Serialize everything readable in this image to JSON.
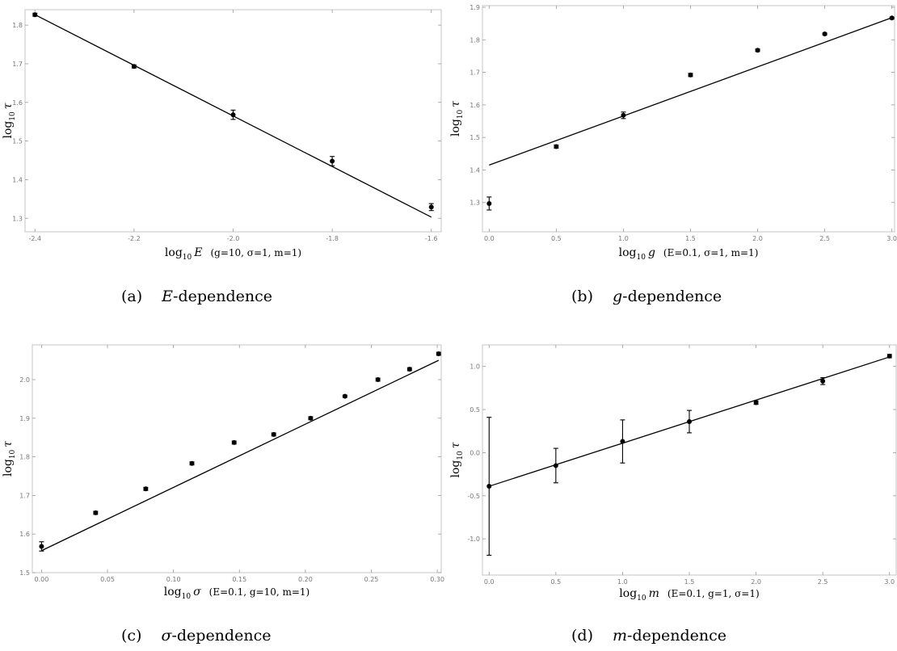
{
  "chart_data": [
    {
      "panel": "a",
      "type": "scatter",
      "xlabel": {
        "pre": "log",
        "sub": "10",
        "var": "E",
        "params": "(g=10, σ=1, m=1)"
      },
      "ylabel": {
        "pre": "log",
        "sub": "10",
        "var": "τ"
      },
      "xlim": [
        -2.42,
        -1.58
      ],
      "ylim": [
        1.265,
        1.84
      ],
      "xticks": [
        -2.4,
        -2.2,
        -2.0,
        -1.8,
        -1.6
      ],
      "xtick_labels": [
        "-2.4",
        "-2.2",
        "-2.0",
        "-1.8",
        "-1.6"
      ],
      "yticks": [
        1.3,
        1.4,
        1.5,
        1.6,
        1.7,
        1.8
      ],
      "ytick_labels": [
        "1.3",
        "1.4",
        "1.5",
        "1.6",
        "1.7",
        "1.8"
      ],
      "points": [
        {
          "x": -2.4,
          "y": 1.827,
          "err": 0.004
        },
        {
          "x": -2.2,
          "y": 1.693,
          "err": 0.004
        },
        {
          "x": -2.0,
          "y": 1.568,
          "err": 0.012
        },
        {
          "x": -1.8,
          "y": 1.448,
          "err": 0.012
        },
        {
          "x": -1.6,
          "y": 1.329,
          "err": 0.009
        }
      ],
      "fit": [
        [
          -2.4,
          1.827
        ],
        [
          -1.6,
          1.303
        ]
      ],
      "caption": {
        "tag": "(a)",
        "symbol": "E",
        "text": "-dependence"
      }
    },
    {
      "panel": "b",
      "type": "scatter",
      "xlabel": {
        "pre": "log",
        "sub": "10",
        "var": "g",
        "params": "(E=0.1, σ=1, m=1)"
      },
      "ylabel": {
        "pre": "log",
        "sub": "10",
        "var": "τ"
      },
      "xlim": [
        -0.05,
        3.02
      ],
      "ylim": [
        1.21,
        1.905
      ],
      "xticks": [
        0,
        0.5,
        1.0,
        1.5,
        2.0,
        2.5,
        3.0
      ],
      "xtick_labels": [
        "0.0",
        "0.5",
        "1.0",
        "1.5",
        "2.0",
        "2.5",
        "3.0"
      ],
      "yticks": [
        1.3,
        1.4,
        1.5,
        1.6,
        1.7,
        1.8,
        1.9
      ],
      "ytick_labels": [
        "1.3",
        "1.4",
        "1.5",
        "1.6",
        "1.7",
        "1.8",
        "1.9"
      ],
      "points": [
        {
          "x": 0.0,
          "y": 1.297,
          "err": 0.02
        },
        {
          "x": 0.5,
          "y": 1.472,
          "err": 0.005
        },
        {
          "x": 1.0,
          "y": 1.568,
          "err": 0.01
        },
        {
          "x": 1.5,
          "y": 1.692,
          "err": 0.005
        },
        {
          "x": 2.0,
          "y": 1.768,
          "err": 0.004
        },
        {
          "x": 2.5,
          "y": 1.818,
          "err": 0.003
        },
        {
          "x": 3.0,
          "y": 1.867,
          "err": 0.003
        }
      ],
      "fit": [
        [
          0.0,
          1.415
        ],
        [
          3.0,
          1.868
        ]
      ],
      "caption": {
        "tag": "(b)",
        "symbol": "g",
        "text": "-dependence"
      }
    },
    {
      "panel": "c",
      "type": "scatter",
      "xlabel": {
        "pre": "log",
        "sub": "10",
        "var": "σ",
        "params": "(E=0.1, g=10, m=1)"
      },
      "ylabel": {
        "pre": "log",
        "sub": "10",
        "var": "τ"
      },
      "xlim": [
        -0.007,
        0.303
      ],
      "ylim": [
        1.5,
        2.09
      ],
      "xticks": [
        0,
        0.05,
        0.1,
        0.15,
        0.2,
        0.25,
        0.3
      ],
      "xtick_labels": [
        "0.00",
        "0.05",
        "0.10",
        "0.15",
        "0.20",
        "0.25",
        "0.30"
      ],
      "yticks": [
        1.5,
        1.6,
        1.7,
        1.8,
        1.9,
        2.0
      ],
      "ytick_labels": [
        "1.5",
        "1.6",
        "1.7",
        "1.8",
        "1.9",
        "2.0"
      ],
      "points": [
        {
          "x": 0.0,
          "y": 1.568,
          "err": 0.012
        },
        {
          "x": 0.041,
          "y": 1.655,
          "err": 0.004
        },
        {
          "x": 0.079,
          "y": 1.717,
          "err": 0.004
        },
        {
          "x": 0.114,
          "y": 1.783,
          "err": 0.004
        },
        {
          "x": 0.146,
          "y": 1.837,
          "err": 0.004
        },
        {
          "x": 0.176,
          "y": 1.858,
          "err": 0.004
        },
        {
          "x": 0.204,
          "y": 1.9,
          "err": 0.004
        },
        {
          "x": 0.23,
          "y": 1.957,
          "err": 0.003
        },
        {
          "x": 0.255,
          "y": 2.0,
          "err": 0.004
        },
        {
          "x": 0.279,
          "y": 2.027,
          "err": 0.004
        },
        {
          "x": 0.301,
          "y": 2.067,
          "err": 0.004
        }
      ],
      "fit": [
        [
          0.0,
          1.557
        ],
        [
          0.301,
          2.05
        ]
      ],
      "caption": {
        "tag": "(c)",
        "symbol": "σ",
        "text": "-dependence"
      }
    },
    {
      "panel": "d",
      "type": "scatter",
      "xlabel": {
        "pre": "log",
        "sub": "10",
        "var": "m",
        "params": "(E=0.1, g=1, σ=1)"
      },
      "ylabel": {
        "pre": "log",
        "sub": "10",
        "var": "τ"
      },
      "xlim": [
        -0.05,
        3.05
      ],
      "ylim": [
        -1.42,
        1.25
      ],
      "xticks": [
        0,
        0.5,
        1.0,
        1.5,
        2.0,
        2.5,
        3.0
      ],
      "xtick_labels": [
        "0.0",
        "0.5",
        "1.0",
        "1.5",
        "2.0",
        "2.5",
        "3.0"
      ],
      "yticks": [
        -1.0,
        -0.5,
        0.0,
        0.5,
        1.0
      ],
      "ytick_labels": [
        "-1.0",
        "-0.5",
        "0.0",
        "0.5",
        "1.0"
      ],
      "points": [
        {
          "x": 0.0,
          "y": -0.39,
          "err": 0.8
        },
        {
          "x": 0.5,
          "y": -0.15,
          "err": 0.2
        },
        {
          "x": 1.0,
          "y": 0.13,
          "err": 0.25
        },
        {
          "x": 1.5,
          "y": 0.36,
          "err": 0.13
        },
        {
          "x": 2.0,
          "y": 0.58,
          "err": 0.02
        },
        {
          "x": 2.5,
          "y": 0.83,
          "err": 0.04
        },
        {
          "x": 3.0,
          "y": 1.12,
          "err": 0.02
        }
      ],
      "fit": [
        [
          0.0,
          -0.39
        ],
        [
          3.0,
          1.11
        ]
      ],
      "caption": {
        "tag": "(d)",
        "symbol": "m",
        "text": "-dependence"
      }
    }
  ]
}
